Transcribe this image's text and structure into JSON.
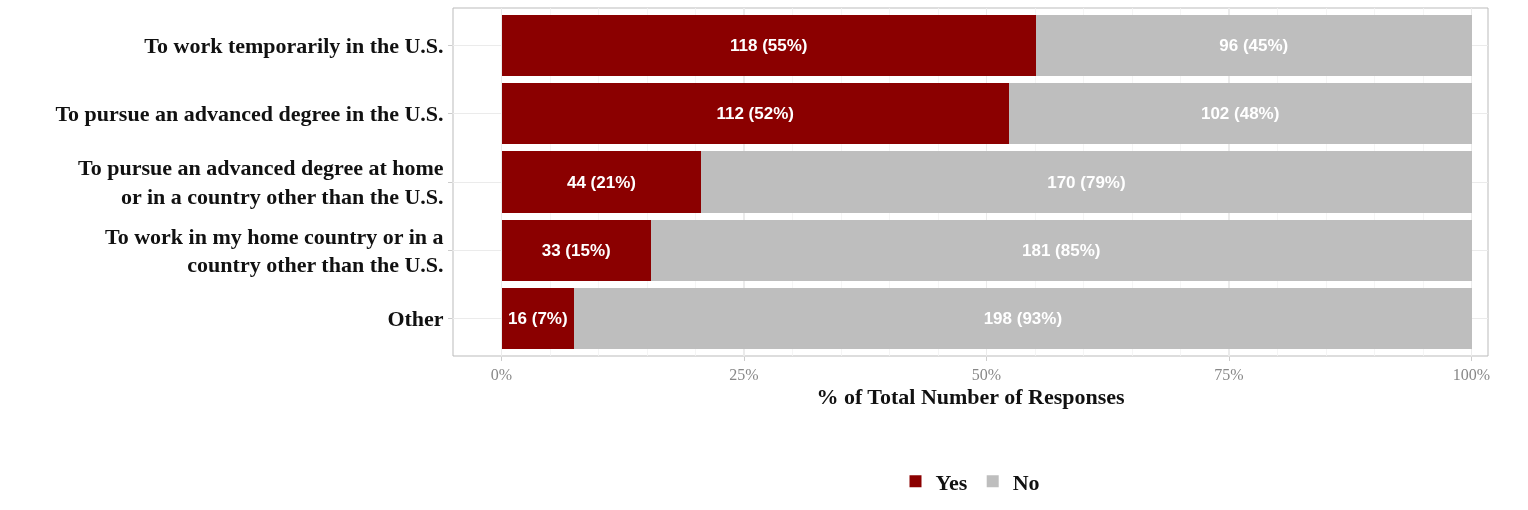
{
  "chart_data": {
    "type": "bar",
    "orientation": "horizontal",
    "stacked": true,
    "categories": [
      "To work temporarily in the U.S.",
      "To pursue an advanced degree in the U.S.",
      "To pursue an advanced degree at home\nor in a country other than the U.S.",
      "To work in my home country or in a\ncountry other than the U.S.",
      "Other"
    ],
    "series": [
      {
        "name": "Yes",
        "color": "#8b0000",
        "values": [
          55.1,
          52.3,
          20.6,
          15.4,
          7.5
        ],
        "value_labels": [
          "118 (55%)",
          "112 (52%)",
          "44 (21%)",
          "33 (15%)",
          "16 (7%)"
        ]
      },
      {
        "name": "No",
        "color": "#bebebe",
        "values": [
          44.9,
          47.7,
          79.4,
          84.6,
          92.5
        ],
        "value_labels": [
          "96 (45%)",
          "102 (48%)",
          "170 (79%)",
          "181 (85%)",
          "198 (93%)"
        ]
      }
    ],
    "xlabel": "% of Total Number of Responses",
    "xlim": [
      -5,
      101.7
    ],
    "xticks": [
      {
        "value": 0,
        "label": "0%"
      },
      {
        "value": 25,
        "label": "25%"
      },
      {
        "value": 50,
        "label": "50%"
      },
      {
        "value": 75,
        "label": "75%"
      },
      {
        "value": 100,
        "label": "100%"
      }
    ],
    "grid": true,
    "legend": "bottom"
  }
}
